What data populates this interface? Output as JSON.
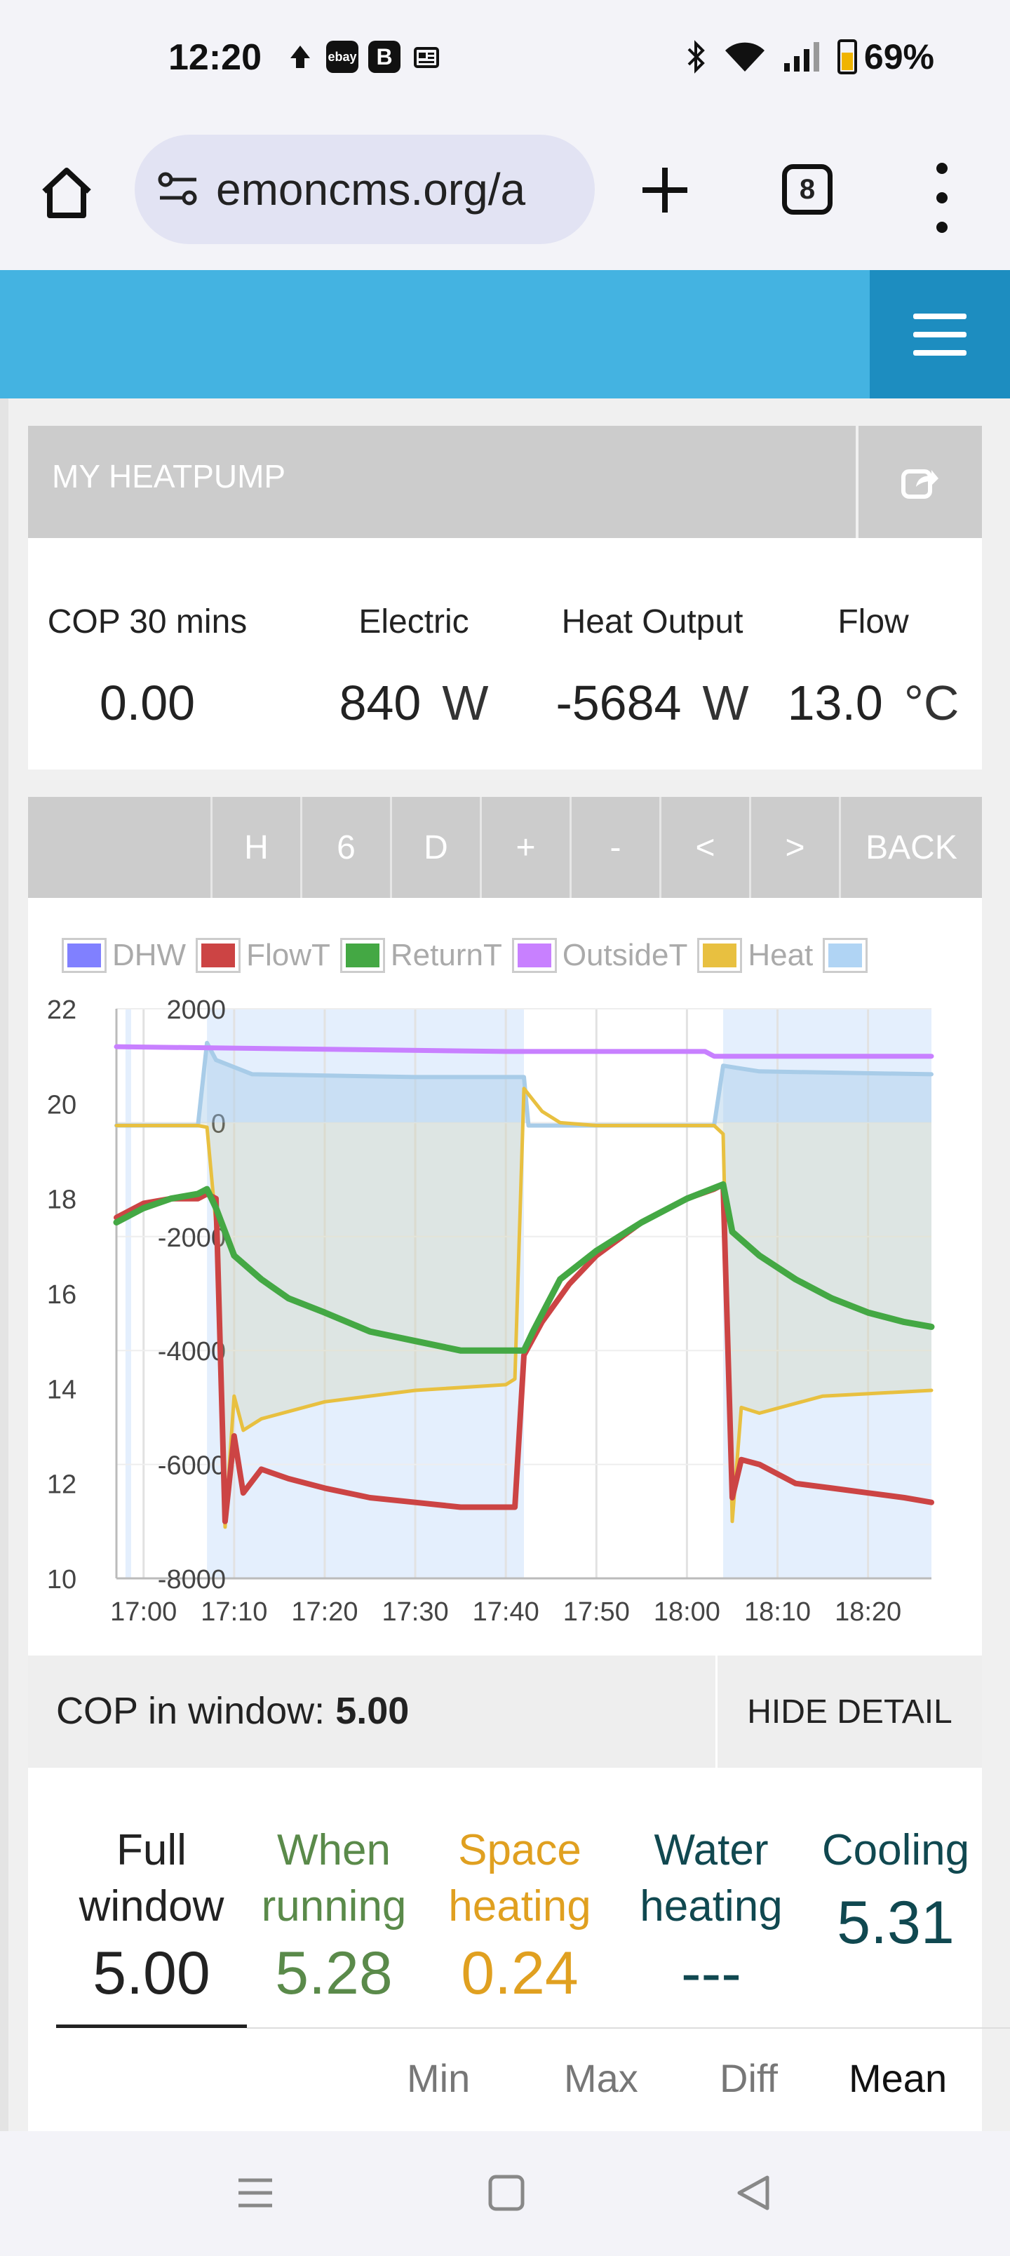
{
  "status_bar": {
    "time": "12:20",
    "battery": "69%",
    "left_icons": [
      "upload-icon",
      "ebay-icon",
      "b-icon",
      "news-icon"
    ],
    "right_icons": [
      "bluetooth-icon",
      "wifi-icon",
      "signal-icon",
      "battery-icon"
    ]
  },
  "browser": {
    "url": "emoncms.org/a",
    "tab_count": "8"
  },
  "panel": {
    "title": "MY HEATPUMP"
  },
  "stats": [
    {
      "label": "COP 30 mins",
      "value": "0.00",
      "unit": ""
    },
    {
      "label": "Electric",
      "value": "840",
      "unit": "W"
    },
    {
      "label": "Heat Output",
      "value": "-5684",
      "unit": "W"
    },
    {
      "label": "Flow",
      "value": "13.0",
      "unit": "°C"
    }
  ],
  "time_nav": [
    "H",
    "6",
    "D",
    "+",
    "-",
    "<",
    ">",
    "BACK"
  ],
  "legend": [
    {
      "name": "DHW",
      "color": "#8080ff"
    },
    {
      "name": "FlowT",
      "color": "#cc4444"
    },
    {
      "name": "ReturnT",
      "color": "#44a844"
    },
    {
      "name": "OutsideT",
      "color": "#c880ff"
    },
    {
      "name": "Heat",
      "color": "#e8c040"
    },
    {
      "name": "",
      "color": "#b0d4f4"
    }
  ],
  "chart_data": {
    "type": "line",
    "x_ticks": [
      "17:00",
      "17:10",
      "17:20",
      "17:30",
      "17:40",
      "17:50",
      "18:00",
      "18:10",
      "18:20"
    ],
    "y_left": {
      "ticks": [
        22,
        20,
        18,
        16,
        14,
        12,
        10
      ],
      "ylim": [
        10,
        22
      ]
    },
    "y_right": {
      "ticks": [
        2000,
        0,
        -2000,
        -4000,
        -6000,
        -8000
      ],
      "ylim": [
        -8000,
        2000
      ]
    },
    "xlim_minutes": [
      -3,
      87
    ],
    "running_periods_minutes": [
      [
        7,
        42
      ],
      [
        64,
        87
      ]
    ],
    "grid": true,
    "series": [
      {
        "name": "FlowT",
        "color": "#cc4444",
        "axis": "left",
        "points": [
          [
            -3,
            17.6
          ],
          [
            0,
            17.9
          ],
          [
            3,
            18.0
          ],
          [
            6,
            18.0
          ],
          [
            7,
            18.1
          ],
          [
            8,
            18.0
          ],
          [
            9,
            11.2
          ],
          [
            10,
            13.0
          ],
          [
            11,
            11.8
          ],
          [
            13,
            12.3
          ],
          [
            16,
            12.1
          ],
          [
            20,
            11.9
          ],
          [
            25,
            11.7
          ],
          [
            30,
            11.6
          ],
          [
            35,
            11.5
          ],
          [
            38,
            11.5
          ],
          [
            41,
            11.5
          ],
          [
            42,
            14.7
          ],
          [
            44,
            15.4
          ],
          [
            47,
            16.2
          ],
          [
            50,
            16.8
          ],
          [
            55,
            17.5
          ],
          [
            60,
            18.0
          ],
          [
            63,
            18.2
          ],
          [
            64,
            18.3
          ],
          [
            65,
            11.7
          ],
          [
            66,
            12.5
          ],
          [
            68,
            12.4
          ],
          [
            72,
            12.0
          ],
          [
            76,
            11.9
          ],
          [
            80,
            11.8
          ],
          [
            84,
            11.7
          ],
          [
            87,
            11.6
          ]
        ]
      },
      {
        "name": "ReturnT",
        "color": "#44a844",
        "axis": "left",
        "points": [
          [
            -3,
            17.5
          ],
          [
            0,
            17.8
          ],
          [
            3,
            18.0
          ],
          [
            6,
            18.1
          ],
          [
            7,
            18.2
          ],
          [
            8,
            17.8
          ],
          [
            10,
            16.8
          ],
          [
            13,
            16.3
          ],
          [
            16,
            15.9
          ],
          [
            20,
            15.6
          ],
          [
            25,
            15.2
          ],
          [
            30,
            15.0
          ],
          [
            35,
            14.8
          ],
          [
            40,
            14.8
          ],
          [
            42,
            14.8
          ],
          [
            43,
            15.2
          ],
          [
            46,
            16.3
          ],
          [
            50,
            16.9
          ],
          [
            55,
            17.5
          ],
          [
            60,
            18.0
          ],
          [
            64,
            18.3
          ],
          [
            65,
            17.3
          ],
          [
            68,
            16.8
          ],
          [
            72,
            16.3
          ],
          [
            76,
            15.9
          ],
          [
            80,
            15.6
          ],
          [
            84,
            15.4
          ],
          [
            87,
            15.3
          ]
        ]
      },
      {
        "name": "OutsideT",
        "color": "#c880ff",
        "axis": "left",
        "points": [
          [
            -3,
            21.2
          ],
          [
            40,
            21.1
          ],
          [
            62,
            21.1
          ],
          [
            63,
            21.0
          ],
          [
            87,
            21.0
          ]
        ]
      },
      {
        "name": "Heat",
        "color": "#e8c040",
        "axis": "right",
        "points": [
          [
            -3,
            -50
          ],
          [
            6,
            -50
          ],
          [
            7,
            -80
          ],
          [
            8,
            -1800
          ],
          [
            9,
            -7100
          ],
          [
            10,
            -4800
          ],
          [
            11,
            -5400
          ],
          [
            13,
            -5200
          ],
          [
            20,
            -4900
          ],
          [
            30,
            -4700
          ],
          [
            40,
            -4600
          ],
          [
            41,
            -4500
          ],
          [
            42,
            600
          ],
          [
            44,
            200
          ],
          [
            46,
            0
          ],
          [
            50,
            -50
          ],
          [
            63,
            -50
          ],
          [
            64,
            -200
          ],
          [
            65,
            -7000
          ],
          [
            66,
            -5000
          ],
          [
            68,
            -5100
          ],
          [
            75,
            -4800
          ],
          [
            87,
            -4700
          ]
        ]
      },
      {
        "name": "",
        "color": "#a8cce8",
        "axis": "right",
        "points": [
          [
            -3,
            -50
          ],
          [
            6,
            -50
          ],
          [
            7,
            1400
          ],
          [
            8,
            1100
          ],
          [
            12,
            850
          ],
          [
            30,
            800
          ],
          [
            42,
            800
          ],
          [
            42.5,
            -50
          ],
          [
            63,
            -50
          ],
          [
            64,
            1000
          ],
          [
            68,
            900
          ],
          [
            87,
            850
          ]
        ]
      }
    ]
  },
  "cop_window": {
    "label": "COP in window:",
    "value": "5.00",
    "hide_label": "HIDE DETAIL"
  },
  "cop_detail": {
    "columns": [
      {
        "line1": "Full",
        "line2": "window",
        "value": "5.00",
        "color": "#222222"
      },
      {
        "line1": "When",
        "line2": "running",
        "value": "5.28",
        "color": "#5a8a4a"
      },
      {
        "line1": "Space",
        "line2": "heating",
        "value": "0.24",
        "color": "#e0a020"
      },
      {
        "line1": "Water",
        "line2": "heating",
        "value": "---",
        "color": "#104850"
      },
      {
        "line1": "Cooling",
        "line2": "",
        "value": "5.31",
        "color": "#104850"
      }
    ],
    "sub_tabs": [
      "Min",
      "Max",
      "Diff",
      "Mean"
    ],
    "active_sub_tab": "Mean"
  }
}
